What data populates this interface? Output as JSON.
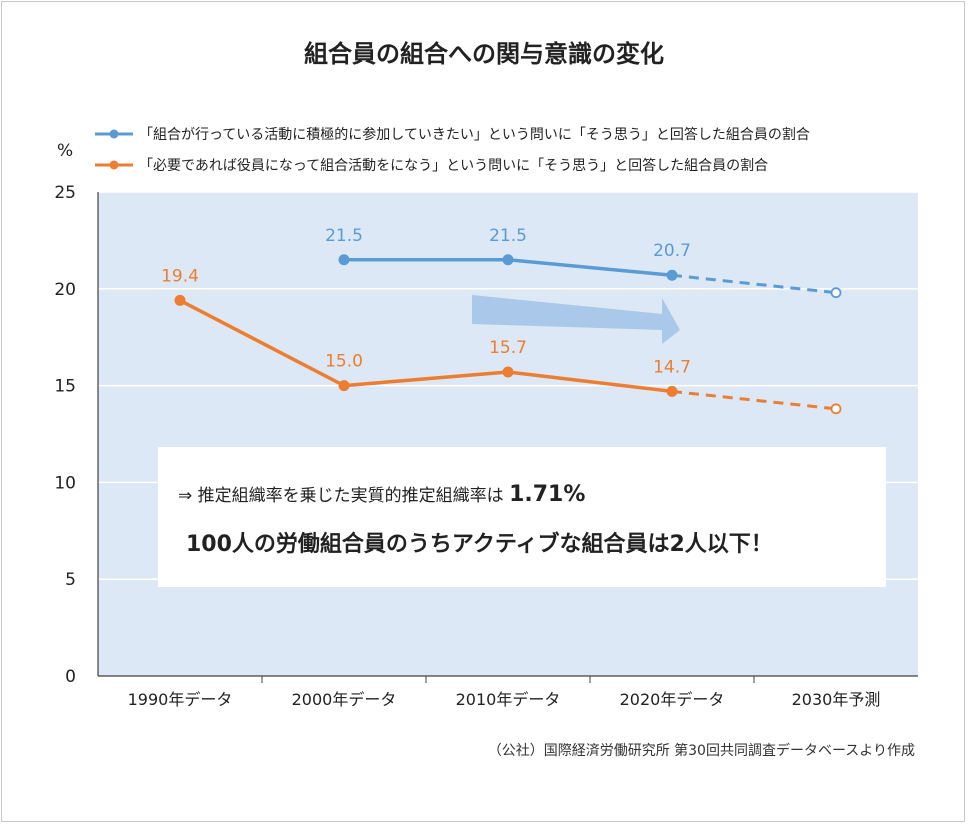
{
  "chart_data": {
    "type": "line",
    "title": "組合員の組合への関与意識の変化",
    "unit_label": "%",
    "categories": [
      "1990年データ",
      "2000年データ",
      "2010年データ",
      "2020年データ",
      "2030年予測"
    ],
    "ylim": [
      0,
      25
    ],
    "yticks": [
      0,
      5,
      10,
      15,
      20,
      25
    ],
    "grid": true,
    "legend_position": "top-left",
    "series": [
      {
        "name": "「組合が行っている活動に積極的に参加していきたい」という問いに「そう思う」と回答した組合員の割合",
        "color": "#5b9bd5",
        "values": [
          null,
          21.5,
          21.5,
          20.7,
          19.8
        ],
        "labels": [
          "",
          "21.5",
          "21.5",
          "20.7",
          ""
        ],
        "projected_from_index": 3
      },
      {
        "name": "「必要であれば役員になって組合活動をになう」という問いに「そう思う」と回答した組合員の割合",
        "color": "#ed7d31",
        "values": [
          19.4,
          15.0,
          15.7,
          14.7,
          13.8
        ],
        "labels": [
          "19.4",
          "15.0",
          "15.7",
          "14.7",
          ""
        ],
        "projected_from_index": 3
      }
    ],
    "callout": {
      "line1_prefix": "⇒ 推定組織率を乗じた実質的推定組織率は ",
      "line1_value": "1.71%",
      "line2": "100人の労働組合員のうちアクティブな組合員は2人以下！"
    },
    "source": "（公社）国際経済労働研究所 第30回共同調査データベースより作成"
  },
  "colors": {
    "plot_background": "#dce8f5",
    "grid": "#ffffff",
    "axis": "#404040",
    "arrow": "#a9c8ea"
  }
}
